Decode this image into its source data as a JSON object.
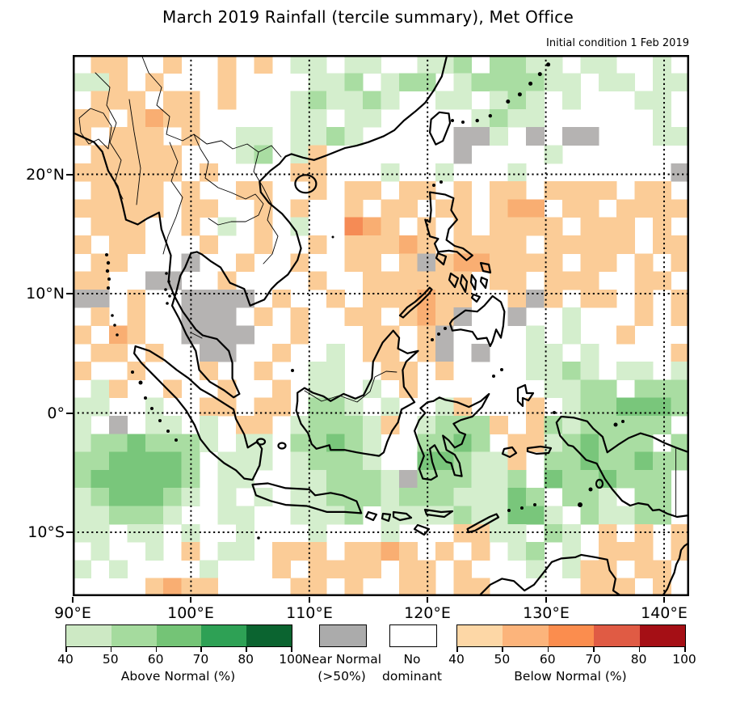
{
  "title": "March 2019 Rainfall (tercile summary), Met Office",
  "subtitle": "Initial condition 1 Feb 2019",
  "axes": {
    "lon_ticks": [
      {
        "lon": 90,
        "label": "90°E"
      },
      {
        "lon": 100,
        "label": "100°E"
      },
      {
        "lon": 110,
        "label": "110°E"
      },
      {
        "lon": 120,
        "label": "120°E"
      },
      {
        "lon": 130,
        "label": "130°E"
      },
      {
        "lon": 140,
        "label": "140°E"
      }
    ],
    "lat_ticks": [
      {
        "lat": 20,
        "label": "20°N"
      },
      {
        "lat": 10,
        "label": "10°N"
      },
      {
        "lat": 0,
        "label": "0°"
      },
      {
        "lat": -10,
        "label": "10°S"
      }
    ],
    "lon_gridlines": [
      100,
      110,
      120,
      130,
      140
    ],
    "lat_gridlines": [
      20,
      10,
      0,
      -10
    ],
    "lon_range": [
      90,
      142.1
    ],
    "lat_range": [
      -15.3,
      30
    ]
  },
  "legend": {
    "above": {
      "label": "Above Normal (%)",
      "ticks": [
        "40",
        "50",
        "60",
        "70",
        "80",
        "100"
      ],
      "colors": [
        "#cde9c4",
        "#a5db9e",
        "#74c476",
        "#2ea155",
        "#0b6430"
      ]
    },
    "near": {
      "line1": "Near Normal",
      "line2": "(>50%)",
      "color": "#ababab"
    },
    "none": {
      "line1": "No",
      "line2": "dominant",
      "color": "#ffffff"
    },
    "below": {
      "label": "Below Normal (%)",
      "ticks": [
        "40",
        "50",
        "60",
        "70",
        "80",
        "100"
      ],
      "colors": [
        "#fdd7a6",
        "#fcb47b",
        "#fb8d4e",
        "#e05b44",
        "#a50f15"
      ]
    }
  },
  "chart_data": {
    "type": "heatmap",
    "title": "March 2019 Rainfall (tercile summary), Met Office",
    "subtitle": "Initial condition 1 Feb 2019",
    "projection": "lat-lon grid over Southeast Asia / Maritime Continent",
    "cell_size_deg": 1.5,
    "lon_range": [
      90,
      142.1
    ],
    "lat_range": [
      -15.3,
      30
    ],
    "grid_cols": 34,
    "grid_rows": 30,
    "palette": {
      ".": "#ffffff",
      "1": "#d4eecd",
      "2": "#a9dda2",
      "3": "#79c67b",
      "4": "#2ea155",
      "5": "#0b6430",
      "a": "#fbcc97",
      "b": "#f9ae72",
      "c": "#f58b55",
      "g": "#b5b3b2"
    },
    "classes": {
      ".": "No dominant tercile",
      "1": "Above Normal 40-50%",
      "2": "Above Normal 50-60%",
      "3": "Above Normal 60-70%",
      "4": "Above Normal 70-80%",
      "5": "Above Normal 80-100%",
      "a": "Below Normal 40-50%",
      "b": "Below Normal 50-60%",
      "c": "Below Normal 60-70%",
      "g": "Near Normal >50%"
    },
    "rows": [
      ".aa..a..a.a.11.11..112.2211.11..1.",
      "11a.a...a....112.122.1222211.11.11",
      ".aaa.aa.a...121121..11.121.1...11.",
      "aa.abaa.....11.11.....1211......1.",
      "a.aaa.a..11.1121.....gg1.g.gg...11",
      ".aaaaa...12.1a.......g....1.......",
      "aaaaaa.a....aa...1..1...1........g",
      ".aaaa.a..aa..a.aa.aa.a.aa.aaaa.aa.",
      "aaaaa.aa..a.a..a.aa.aa.abb.aa.aaaa",
      ".aaa..a.1.a.1..cba.a.a.aaaa.aaa.a.",
      "a.aa...a..a..a.aaaba.aaaa.aaaaa.aa",
      ".aa...g..a..a..aa.agabbaaaa.aa.a.a",
      "aa..gg..a....a..aaaaaa.aa.aaa..aa.",
      "gg.a..gggg.a..a.aaabaa..aga.aa.a.a",
      ".a.a..ggg.a.a..aa.abag..g..1...a.a",
      "a.ba..gggg..a...aa.ag....1.1..a...",
      ".aa.a..gg..a..1.aa.ag.g..11.1....a",
      "a..a...a..a..11..aa.a....1121.11.1",
      ".1a..a..a..a.11.1.a.......1122.222",
      "11..1..aa.aa.221.1..1a...a.1223332",
      "1.g.11.1.aa.12221a.1222a.a2122222.",
      "12232221.11.22321..2232.aa123222.2",
      "2233332.111.12221..33211a.22322322",
      "2333332.11..112221g222112.3223222.",
      "1233321.1.1.11222122211132.221.22.",
      "112221..11..1112.1111211331.21122.",
      "11.11.1..1...1...1...aa11.21.a.a.a",
      ".1..1.a.11.aaa.aaba.a.a.12.1.aaa.a",
      "1.1....1...a.aaaa.aa.a...1.1aa.aa.",
      "....abaa....aa.a..aa.aa.....aaa.a."
    ]
  }
}
